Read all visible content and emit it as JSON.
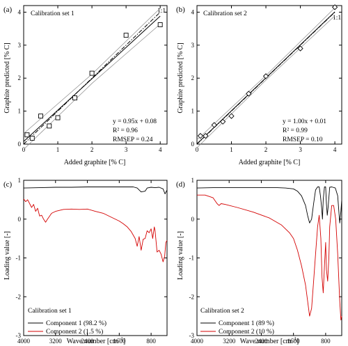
{
  "chart_data": [
    {
      "panel_label": "(a)",
      "type": "scatter",
      "legend_title": "Calibration set 1",
      "xlabel": "Added  graphite [% C]",
      "ylabel": "Graphite predicted [% C]",
      "xlim": [
        0,
        4.2
      ],
      "ylim": [
        0,
        4.2
      ],
      "xticks": [
        0,
        1,
        2,
        3,
        4
      ],
      "yticks": [
        0,
        1,
        2,
        3,
        4
      ],
      "points": [
        {
          "x": 0.1,
          "y": 0.28
        },
        {
          "x": 0.25,
          "y": 0.18
        },
        {
          "x": 0.5,
          "y": 0.85
        },
        {
          "x": 0.75,
          "y": 0.55
        },
        {
          "x": 1.0,
          "y": 0.8
        },
        {
          "x": 1.5,
          "y": 1.4
        },
        {
          "x": 2.0,
          "y": 2.15
        },
        {
          "x": 3.0,
          "y": 3.3
        },
        {
          "x": 4.0,
          "y": 3.62
        }
      ],
      "fit": {
        "slope": 0.95,
        "intercept": 0.08
      },
      "reference_label": "1:1",
      "stats": [
        "y = 0.95x + 0.08",
        "R² = 0.96",
        "RMSEP = 0.24"
      ],
      "grid": false
    },
    {
      "panel_label": "(b)",
      "type": "scatter",
      "legend_title": "Calibration set 2",
      "xlabel": "Added graphite [% C]",
      "ylabel": "Graphite predicted [% C]",
      "xlim": [
        0,
        4.2
      ],
      "ylim": [
        0,
        4.2
      ],
      "xticks": [
        0,
        1,
        2,
        3,
        4
      ],
      "yticks": [
        0,
        1,
        2,
        3,
        4
      ],
      "points": [
        {
          "x": 0.1,
          "y": 0.25
        },
        {
          "x": 0.25,
          "y": 0.25
        },
        {
          "x": 0.5,
          "y": 0.58
        },
        {
          "x": 0.75,
          "y": 0.68
        },
        {
          "x": 1.0,
          "y": 0.85
        },
        {
          "x": 1.5,
          "y": 1.53
        },
        {
          "x": 2.0,
          "y": 2.06
        },
        {
          "x": 3.0,
          "y": 2.9
        },
        {
          "x": 4.0,
          "y": 4.15
        }
      ],
      "fit": {
        "slope": 1.0,
        "intercept": 0.01
      },
      "reference_label": "1:1",
      "stats": [
        "y = 1.00x + 0.01",
        "R² = 0.99",
        "RMSEP = 0.10"
      ],
      "grid": false
    },
    {
      "panel_label": "(c)",
      "type": "line",
      "legend_title": "Calibration set 1",
      "xlabel": "Wave number [cm⁻¹]",
      "ylabel": "Loading value [-]",
      "xlim": [
        4000,
        400
      ],
      "ylim": [
        -3,
        1
      ],
      "xticks": [
        4000,
        3200,
        2400,
        1600,
        800
      ],
      "yticks": [
        -3,
        -2,
        -1,
        0,
        1
      ],
      "series": [
        {
          "name": "Component 1 (98.2 %)",
          "color": "#000000",
          "points": [
            [
              4000,
              0.8
            ],
            [
              3600,
              0.81
            ],
            [
              3200,
              0.82
            ],
            [
              2800,
              0.82
            ],
            [
              2400,
              0.83
            ],
            [
              2000,
              0.83
            ],
            [
              1600,
              0.83
            ],
            [
              1250,
              0.83
            ],
            [
              1150,
              0.8
            ],
            [
              1050,
              0.7
            ],
            [
              950,
              0.72
            ],
            [
              900,
              0.8
            ],
            [
              800,
              0.82
            ],
            [
              700,
              0.81
            ],
            [
              600,
              0.82
            ],
            [
              500,
              0.78
            ],
            [
              450,
              0.65
            ],
            [
              400,
              0.75
            ]
          ]
        },
        {
          "name": "Component 2 (1.5 %)",
          "color": "#d40000",
          "points": [
            [
              4000,
              0.52
            ],
            [
              3950,
              0.45
            ],
            [
              3900,
              0.5
            ],
            [
              3850,
              0.4
            ],
            [
              3800,
              0.3
            ],
            [
              3750,
              0.38
            ],
            [
              3700,
              0.2
            ],
            [
              3650,
              0.28
            ],
            [
              3600,
              0.08
            ],
            [
              3550,
              0.1
            ],
            [
              3500,
              0.0
            ],
            [
              3450,
              -0.08
            ],
            [
              3400,
              0.0
            ],
            [
              3300,
              0.15
            ],
            [
              3200,
              0.2
            ],
            [
              3000,
              0.25
            ],
            [
              2800,
              0.26
            ],
            [
              2600,
              0.25
            ],
            [
              2400,
              0.26
            ],
            [
              2200,
              0.2
            ],
            [
              2000,
              0.15
            ],
            [
              1800,
              0.05
            ],
            [
              1600,
              -0.05
            ],
            [
              1500,
              -0.12
            ],
            [
              1400,
              -0.2
            ],
            [
              1300,
              -0.32
            ],
            [
              1200,
              -0.5
            ],
            [
              1150,
              -0.7
            ],
            [
              1100,
              -0.45
            ],
            [
              1050,
              -0.8
            ],
            [
              1000,
              -0.52
            ],
            [
              950,
              -0.5
            ],
            [
              900,
              -0.3
            ],
            [
              850,
              -0.35
            ],
            [
              800,
              -0.25
            ],
            [
              760,
              -0.5
            ],
            [
              720,
              -0.2
            ],
            [
              700,
              -0.3
            ],
            [
              650,
              -0.85
            ],
            [
              600,
              -0.8
            ],
            [
              550,
              -0.9
            ],
            [
              500,
              -1.1
            ],
            [
              460,
              -0.95
            ],
            [
              430,
              -0.6
            ],
            [
              400,
              -0.55
            ]
          ]
        }
      ],
      "legend_location": "lower-left",
      "grid": false
    },
    {
      "panel_label": "(d)",
      "type": "line",
      "legend_title": "Calibration set 2",
      "xlabel": "Wave number [cm⁻¹]",
      "ylabel": "Loading value [-]",
      "xlim": [
        4000,
        400
      ],
      "ylim": [
        -3,
        1
      ],
      "xticks": [
        4000,
        3200,
        2400,
        1600,
        800
      ],
      "yticks": [
        -3,
        -2,
        -1,
        0,
        1
      ],
      "series": [
        {
          "name": "Component 1 (89 %)",
          "color": "#000000",
          "points": [
            [
              4000,
              0.8
            ],
            [
              3600,
              0.81
            ],
            [
              3200,
              0.81
            ],
            [
              2800,
              0.81
            ],
            [
              2400,
              0.81
            ],
            [
              2000,
              0.81
            ],
            [
              1800,
              0.8
            ],
            [
              1600,
              0.78
            ],
            [
              1500,
              0.72
            ],
            [
              1400,
              0.6
            ],
            [
              1300,
              0.35
            ],
            [
              1250,
              0.1
            ],
            [
              1200,
              -0.1
            ],
            [
              1150,
              0.0
            ],
            [
              1100,
              0.4
            ],
            [
              1050,
              0.75
            ],
            [
              1000,
              0.83
            ],
            [
              960,
              0.83
            ],
            [
              930,
              0.6
            ],
            [
              900,
              0.3
            ],
            [
              880,
              0.0
            ],
            [
              860,
              0.5
            ],
            [
              830,
              0.83
            ],
            [
              800,
              0.83
            ],
            [
              780,
              0.4
            ],
            [
              760,
              0.1
            ],
            [
              740,
              0.3
            ],
            [
              700,
              0.82
            ],
            [
              650,
              0.83
            ],
            [
              560,
              0.8
            ],
            [
              500,
              0.6
            ],
            [
              450,
              -0.1
            ],
            [
              420,
              0.2
            ],
            [
              400,
              0.5
            ]
          ]
        },
        {
          "name": "Component 2 (10 %)",
          "color": "#d40000",
          "points": [
            [
              4000,
              0.62
            ],
            [
              3800,
              0.62
            ],
            [
              3600,
              0.55
            ],
            [
              3500,
              0.4
            ],
            [
              3450,
              0.35
            ],
            [
              3400,
              0.4
            ],
            [
              3300,
              0.38
            ],
            [
              3000,
              0.3
            ],
            [
              2600,
              0.18
            ],
            [
              2200,
              0.03
            ],
            [
              1900,
              -0.15
            ],
            [
              1700,
              -0.35
            ],
            [
              1600,
              -0.5
            ],
            [
              1500,
              -0.8
            ],
            [
              1400,
              -1.2
            ],
            [
              1300,
              -1.7
            ],
            [
              1250,
              -2.1
            ],
            [
              1200,
              -2.5
            ],
            [
              1150,
              -2.3
            ],
            [
              1100,
              -1.6
            ],
            [
              1050,
              -0.9
            ],
            [
              1000,
              -0.2
            ],
            [
              960,
              0.1
            ],
            [
              920,
              -0.5
            ],
            [
              890,
              -1.5
            ],
            [
              860,
              -1.9
            ],
            [
              830,
              -1.2
            ],
            [
              800,
              -0.6
            ],
            [
              780,
              -1.3
            ],
            [
              750,
              -1.6
            ],
            [
              720,
              -1.0
            ],
            [
              700,
              -0.2
            ],
            [
              650,
              0.35
            ],
            [
              600,
              0.35
            ],
            [
              550,
              0.0
            ],
            [
              500,
              -0.9
            ],
            [
              450,
              -2.1
            ],
            [
              420,
              -2.6
            ],
            [
              400,
              -2.5
            ]
          ]
        }
      ],
      "legend_location": "lower-left",
      "grid": false
    }
  ]
}
